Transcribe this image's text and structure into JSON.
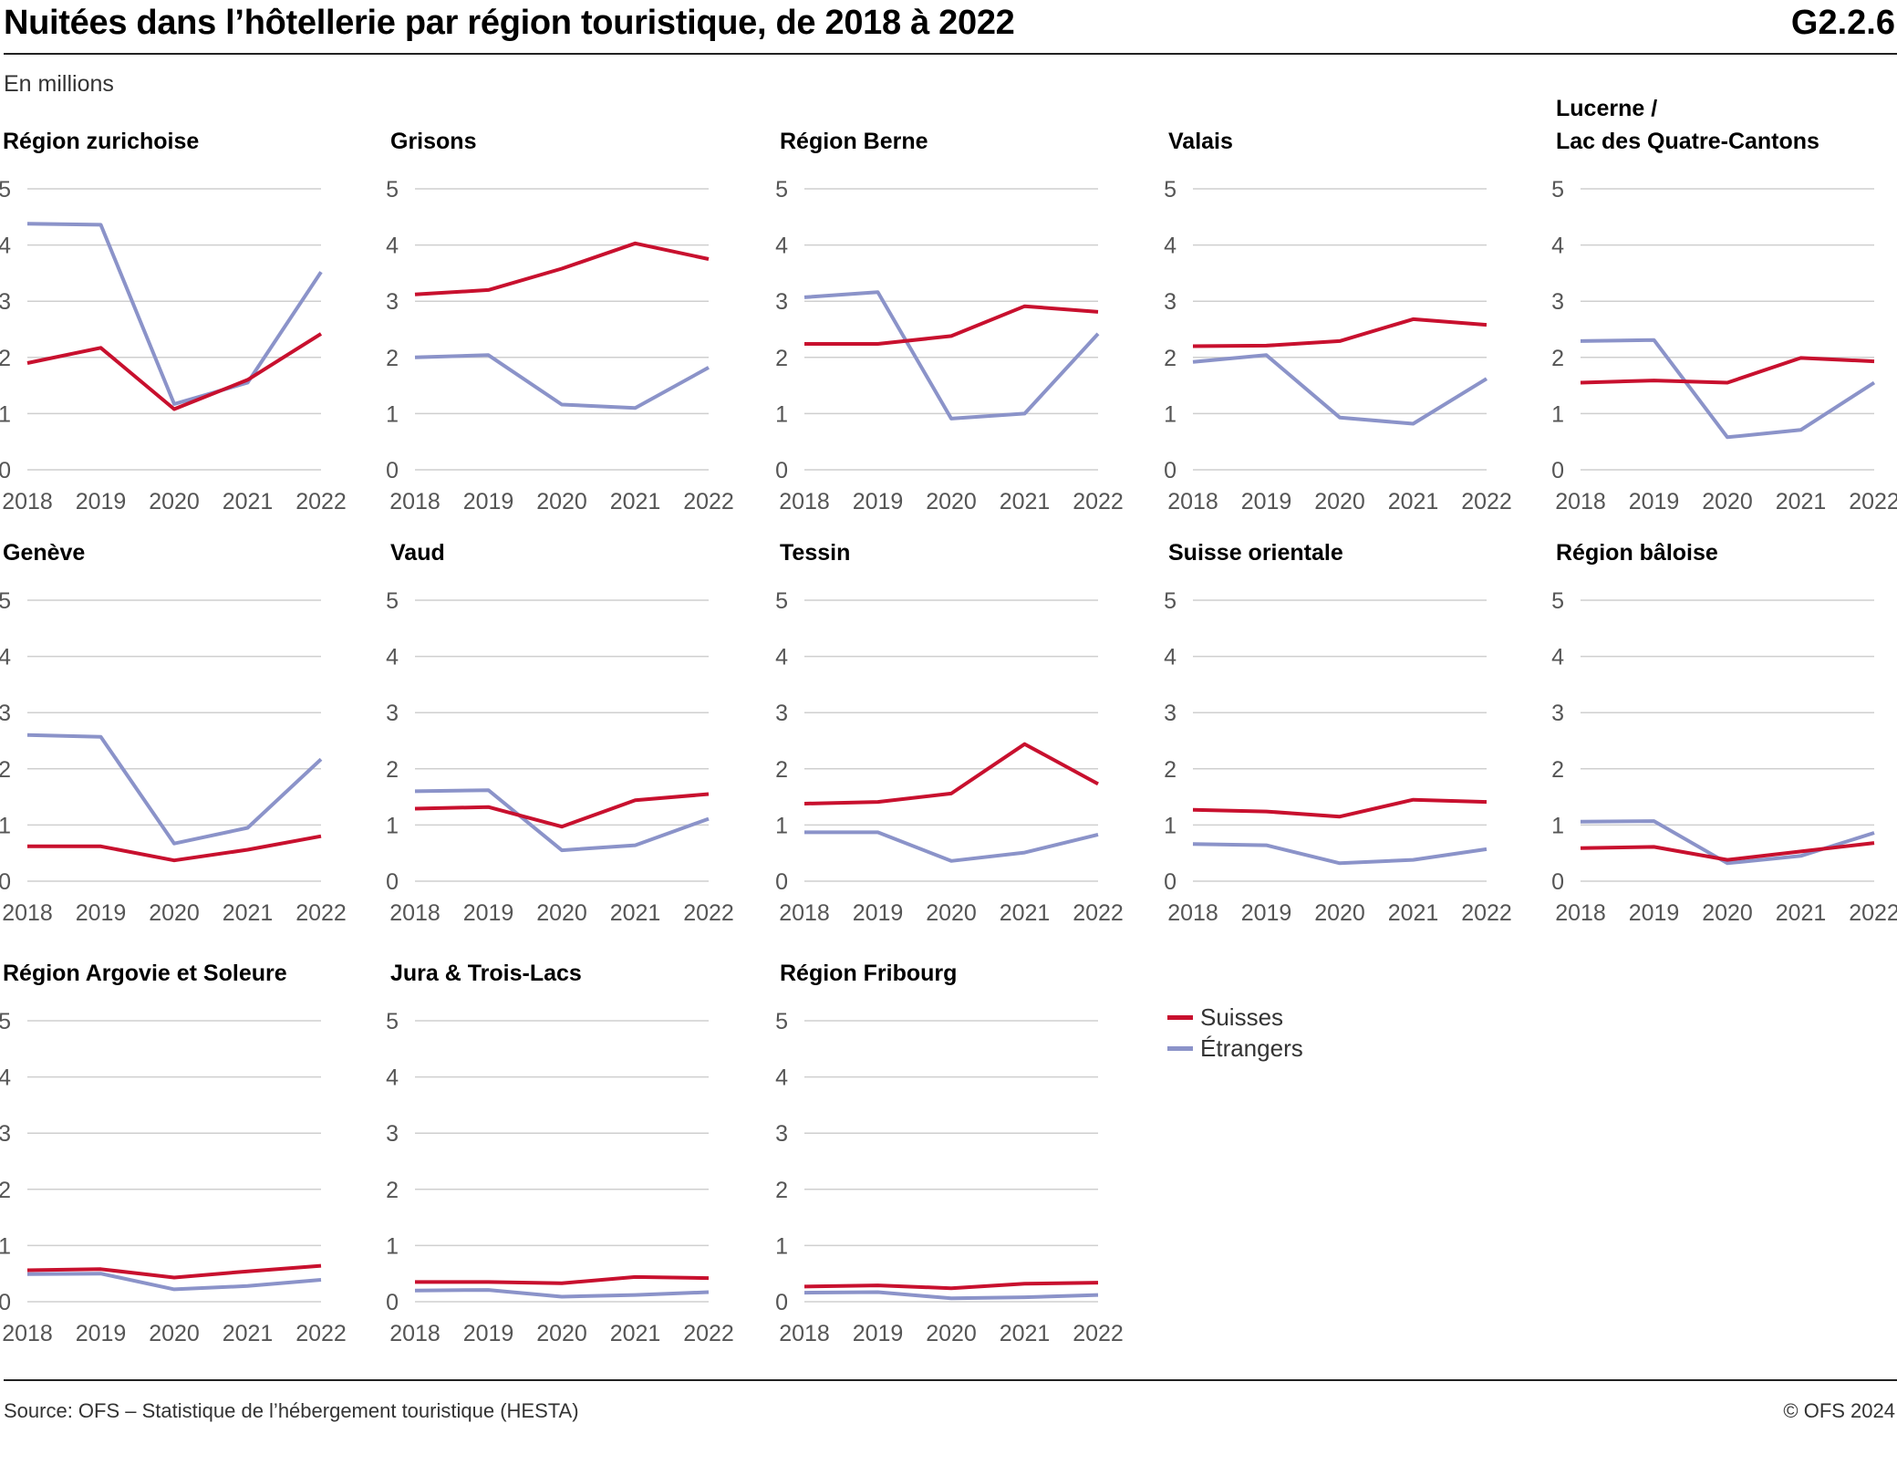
{
  "header": {
    "title": "Nuitées dans l’hôtellerie par région touristique, de 2018 à 2022",
    "code": "G2.2.6",
    "unit": "En millions"
  },
  "legend": {
    "items": [
      {
        "label": "Suisses",
        "color": "#c8102e"
      },
      {
        "label": "Étrangers",
        "color": "#8b93c9"
      }
    ]
  },
  "footer": {
    "source": "Source: OFS – Statistique de l’hébergement touristique (HESTA)",
    "copyright": "© OFS 2024"
  },
  "colors": {
    "suisses": "#c8102e",
    "etrangers": "#8b93c9",
    "grid": "#cfcfcf"
  },
  "chart_data": [
    {
      "type": "line",
      "title": [
        "Région zurichoise"
      ],
      "x": [
        2018,
        2019,
        2020,
        2021,
        2022
      ],
      "ylim": [
        0,
        5
      ],
      "yticks": [
        0,
        1,
        2,
        3,
        4,
        5
      ],
      "series": [
        {
          "name": "Suisses",
          "values": [
            1.9,
            2.17,
            1.08,
            1.6,
            2.42
          ]
        },
        {
          "name": "Étrangers",
          "values": [
            4.38,
            4.36,
            1.17,
            1.55,
            3.52
          ]
        }
      ]
    },
    {
      "type": "line",
      "title": [
        "Grisons"
      ],
      "x": [
        2018,
        2019,
        2020,
        2021,
        2022
      ],
      "ylim": [
        0,
        5
      ],
      "yticks": [
        0,
        1,
        2,
        3,
        4,
        5
      ],
      "series": [
        {
          "name": "Suisses",
          "values": [
            3.12,
            3.2,
            3.58,
            4.03,
            3.75
          ]
        },
        {
          "name": "Étrangers",
          "values": [
            2.0,
            2.04,
            1.16,
            1.1,
            1.82
          ]
        }
      ]
    },
    {
      "type": "line",
      "title": [
        "Région Berne"
      ],
      "x": [
        2018,
        2019,
        2020,
        2021,
        2022
      ],
      "ylim": [
        0,
        5
      ],
      "yticks": [
        0,
        1,
        2,
        3,
        4,
        5
      ],
      "series": [
        {
          "name": "Suisses",
          "values": [
            2.24,
            2.24,
            2.38,
            2.91,
            2.81
          ]
        },
        {
          "name": "Étrangers",
          "values": [
            3.07,
            3.16,
            0.91,
            1.0,
            2.42
          ]
        }
      ]
    },
    {
      "type": "line",
      "title": [
        "Valais"
      ],
      "x": [
        2018,
        2019,
        2020,
        2021,
        2022
      ],
      "ylim": [
        0,
        5
      ],
      "yticks": [
        0,
        1,
        2,
        3,
        4,
        5
      ],
      "series": [
        {
          "name": "Suisses",
          "values": [
            2.2,
            2.21,
            2.29,
            2.68,
            2.58
          ]
        },
        {
          "name": "Étrangers",
          "values": [
            1.92,
            2.04,
            0.93,
            0.82,
            1.62
          ]
        }
      ]
    },
    {
      "type": "line",
      "title": [
        "Lucerne /",
        "Lac des Quatre-Cantons"
      ],
      "x": [
        2018,
        2019,
        2020,
        2021,
        2022
      ],
      "ylim": [
        0,
        5
      ],
      "yticks": [
        0,
        1,
        2,
        3,
        4,
        5
      ],
      "series": [
        {
          "name": "Suisses",
          "values": [
            1.55,
            1.59,
            1.55,
            1.99,
            1.93
          ]
        },
        {
          "name": "Étrangers",
          "values": [
            2.29,
            2.31,
            0.58,
            0.71,
            1.55
          ]
        }
      ]
    },
    {
      "type": "line",
      "title": [
        "Genève"
      ],
      "x": [
        2018,
        2019,
        2020,
        2021,
        2022
      ],
      "ylim": [
        0,
        5
      ],
      "yticks": [
        0,
        1,
        2,
        3,
        4,
        5
      ],
      "series": [
        {
          "name": "Suisses",
          "values": [
            0.62,
            0.62,
            0.37,
            0.56,
            0.8
          ]
        },
        {
          "name": "Étrangers",
          "values": [
            2.6,
            2.57,
            0.67,
            0.95,
            2.17
          ]
        }
      ]
    },
    {
      "type": "line",
      "title": [
        "Vaud"
      ],
      "x": [
        2018,
        2019,
        2020,
        2021,
        2022
      ],
      "ylim": [
        0,
        5
      ],
      "yticks": [
        0,
        1,
        2,
        3,
        4,
        5
      ],
      "series": [
        {
          "name": "Suisses",
          "values": [
            1.29,
            1.32,
            0.97,
            1.44,
            1.55
          ]
        },
        {
          "name": "Étrangers",
          "values": [
            1.6,
            1.62,
            0.55,
            0.64,
            1.11
          ]
        }
      ]
    },
    {
      "type": "line",
      "title": [
        "Tessin"
      ],
      "x": [
        2018,
        2019,
        2020,
        2021,
        2022
      ],
      "ylim": [
        0,
        5
      ],
      "yticks": [
        0,
        1,
        2,
        3,
        4,
        5
      ],
      "series": [
        {
          "name": "Suisses",
          "values": [
            1.38,
            1.41,
            1.56,
            2.44,
            1.73
          ]
        },
        {
          "name": "Étrangers",
          "values": [
            0.87,
            0.87,
            0.36,
            0.51,
            0.83
          ]
        }
      ]
    },
    {
      "type": "line",
      "title": [
        "Suisse orientale"
      ],
      "x": [
        2018,
        2019,
        2020,
        2021,
        2022
      ],
      "ylim": [
        0,
        5
      ],
      "yticks": [
        0,
        1,
        2,
        3,
        4,
        5
      ],
      "series": [
        {
          "name": "Suisses",
          "values": [
            1.27,
            1.24,
            1.15,
            1.45,
            1.41
          ]
        },
        {
          "name": "Étrangers",
          "values": [
            0.66,
            0.64,
            0.32,
            0.38,
            0.57
          ]
        }
      ]
    },
    {
      "type": "line",
      "title": [
        "Région bâloise"
      ],
      "x": [
        2018,
        2019,
        2020,
        2021,
        2022
      ],
      "ylim": [
        0,
        5
      ],
      "yticks": [
        0,
        1,
        2,
        3,
        4,
        5
      ],
      "series": [
        {
          "name": "Suisses",
          "values": [
            0.59,
            0.61,
            0.38,
            0.53,
            0.68
          ]
        },
        {
          "name": "Étrangers",
          "values": [
            1.06,
            1.07,
            0.32,
            0.45,
            0.86
          ]
        }
      ]
    },
    {
      "type": "line",
      "title": [
        "Région Argovie et Soleure"
      ],
      "x": [
        2018,
        2019,
        2020,
        2021,
        2022
      ],
      "ylim": [
        0,
        5
      ],
      "yticks": [
        0,
        1,
        2,
        3,
        4,
        5
      ],
      "series": [
        {
          "name": "Suisses",
          "values": [
            0.56,
            0.58,
            0.43,
            0.54,
            0.64
          ]
        },
        {
          "name": "Étrangers",
          "values": [
            0.49,
            0.5,
            0.22,
            0.28,
            0.39
          ]
        }
      ]
    },
    {
      "type": "line",
      "title": [
        "Jura & Trois-Lacs"
      ],
      "x": [
        2018,
        2019,
        2020,
        2021,
        2022
      ],
      "ylim": [
        0,
        5
      ],
      "yticks": [
        0,
        1,
        2,
        3,
        4,
        5
      ],
      "series": [
        {
          "name": "Suisses",
          "values": [
            0.35,
            0.35,
            0.33,
            0.44,
            0.42
          ]
        },
        {
          "name": "Étrangers",
          "values": [
            0.2,
            0.21,
            0.09,
            0.12,
            0.17
          ]
        }
      ]
    },
    {
      "type": "line",
      "title": [
        "Région Fribourg"
      ],
      "x": [
        2018,
        2019,
        2020,
        2021,
        2022
      ],
      "ylim": [
        0,
        5
      ],
      "yticks": [
        0,
        1,
        2,
        3,
        4,
        5
      ],
      "series": [
        {
          "name": "Suisses",
          "values": [
            0.27,
            0.29,
            0.24,
            0.32,
            0.34
          ]
        },
        {
          "name": "Étrangers",
          "values": [
            0.16,
            0.17,
            0.06,
            0.08,
            0.12
          ]
        }
      ]
    }
  ]
}
